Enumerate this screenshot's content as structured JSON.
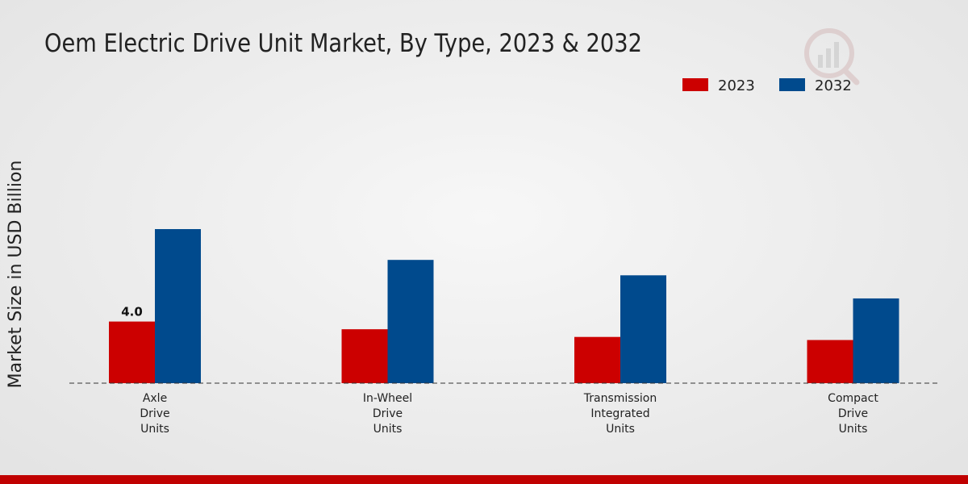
{
  "chart_data": {
    "type": "bar",
    "title": "Oem Electric Drive Unit Market, By Type, 2023 & 2032",
    "xlabel": "",
    "ylabel": "Market Size in USD Billion",
    "categories": [
      [
        "Axle",
        "Drive",
        "Units"
      ],
      [
        "In-Wheel",
        "Drive",
        "Units"
      ],
      [
        "Transmission",
        "Integrated",
        "Units"
      ],
      [
        "Compact",
        "Drive",
        "Units"
      ]
    ],
    "series": [
      {
        "name": "2023",
        "color": "#cc0000",
        "values": [
          4.0,
          3.5,
          3.0,
          2.8
        ]
      },
      {
        "name": "2032",
        "color": "#004a8d",
        "values": [
          10.0,
          8.0,
          7.0,
          5.5
        ]
      }
    ],
    "data_labels": [
      {
        "series": 0,
        "category": 0,
        "text": "4.0"
      }
    ],
    "ylim": [
      0,
      14
    ],
    "grid": false,
    "legend_position": "top-right"
  }
}
